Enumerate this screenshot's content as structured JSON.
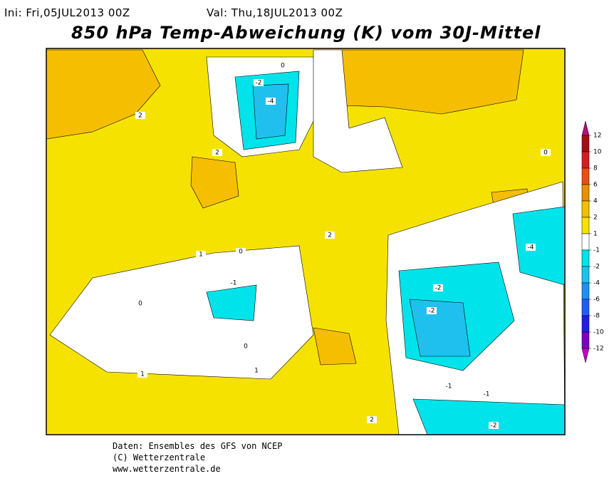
{
  "header": {
    "init": "Ini: Fri,05JUL2013 00Z",
    "valid": "Val: Thu,18JUL2013 00Z",
    "title": "850 hPa Temp-Abweichung (K) vom 30J-Mittel"
  },
  "colorbar": {
    "levels": [
      12,
      10,
      8,
      6,
      4,
      2,
      1,
      -1,
      -2,
      -4,
      -6,
      -8,
      -10,
      -12
    ],
    "colors": [
      "#b0107a",
      "#a01010",
      "#d02020",
      "#e85010",
      "#f08c00",
      "#f5be00",
      "#f6e200",
      "#ffffff",
      "#00e3ea",
      "#20c0ee",
      "#2090f0",
      "#2060f0",
      "#2020e0",
      "#8000c0",
      "#c000c0"
    ]
  },
  "contour_labels": [
    2,
    2,
    -2,
    -4,
    0,
    1,
    0,
    -1,
    0,
    0,
    1,
    1,
    2,
    2,
    -2,
    -2,
    -1,
    -2,
    -4,
    0,
    -1
  ],
  "footer": {
    "lines": [
      "Daten: Ensembles des GFS von NCEP",
      "(C) Wetterzentrale",
      "www.wetterzentrale.de"
    ]
  }
}
